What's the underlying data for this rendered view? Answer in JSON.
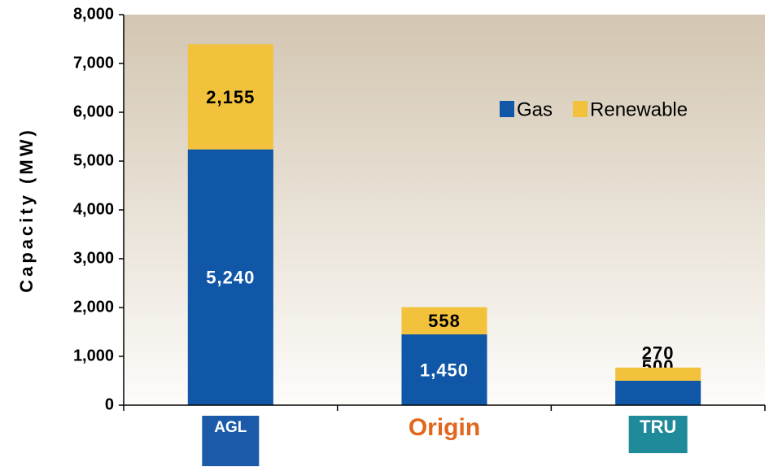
{
  "chart_data": {
    "type": "bar",
    "stacked": true,
    "y_label": "Capacity (MW)",
    "categories": [
      "AGL",
      "Origin",
      "TRU"
    ],
    "series": [
      {
        "name": "Gas",
        "color": "#1157a8",
        "values": [
          5240,
          1450,
          500
        ],
        "value_labels": [
          "5,240",
          "1,450",
          "500"
        ]
      },
      {
        "name": "Renewable",
        "color": "#f2c23c",
        "values": [
          2155,
          558,
          270
        ],
        "value_labels": [
          "2,155",
          "558",
          "270"
        ]
      }
    ],
    "ylim": [
      0,
      8000
    ],
    "yticks": [
      0,
      {
        "value": 1000,
        "label": "1,000"
      },
      {
        "value": 2000,
        "label": "2,000"
      },
      {
        "value": 3000,
        "label": "3,000"
      },
      {
        "value": 4000,
        "label": "4,000"
      },
      {
        "value": 5000,
        "label": "5,000"
      },
      {
        "value": 6000,
        "label": "6,000"
      },
      {
        "value": 7000,
        "label": "7,000"
      },
      {
        "value": 8000,
        "label": "8,000"
      }
    ],
    "grid": false,
    "legend": "upper right"
  }
}
